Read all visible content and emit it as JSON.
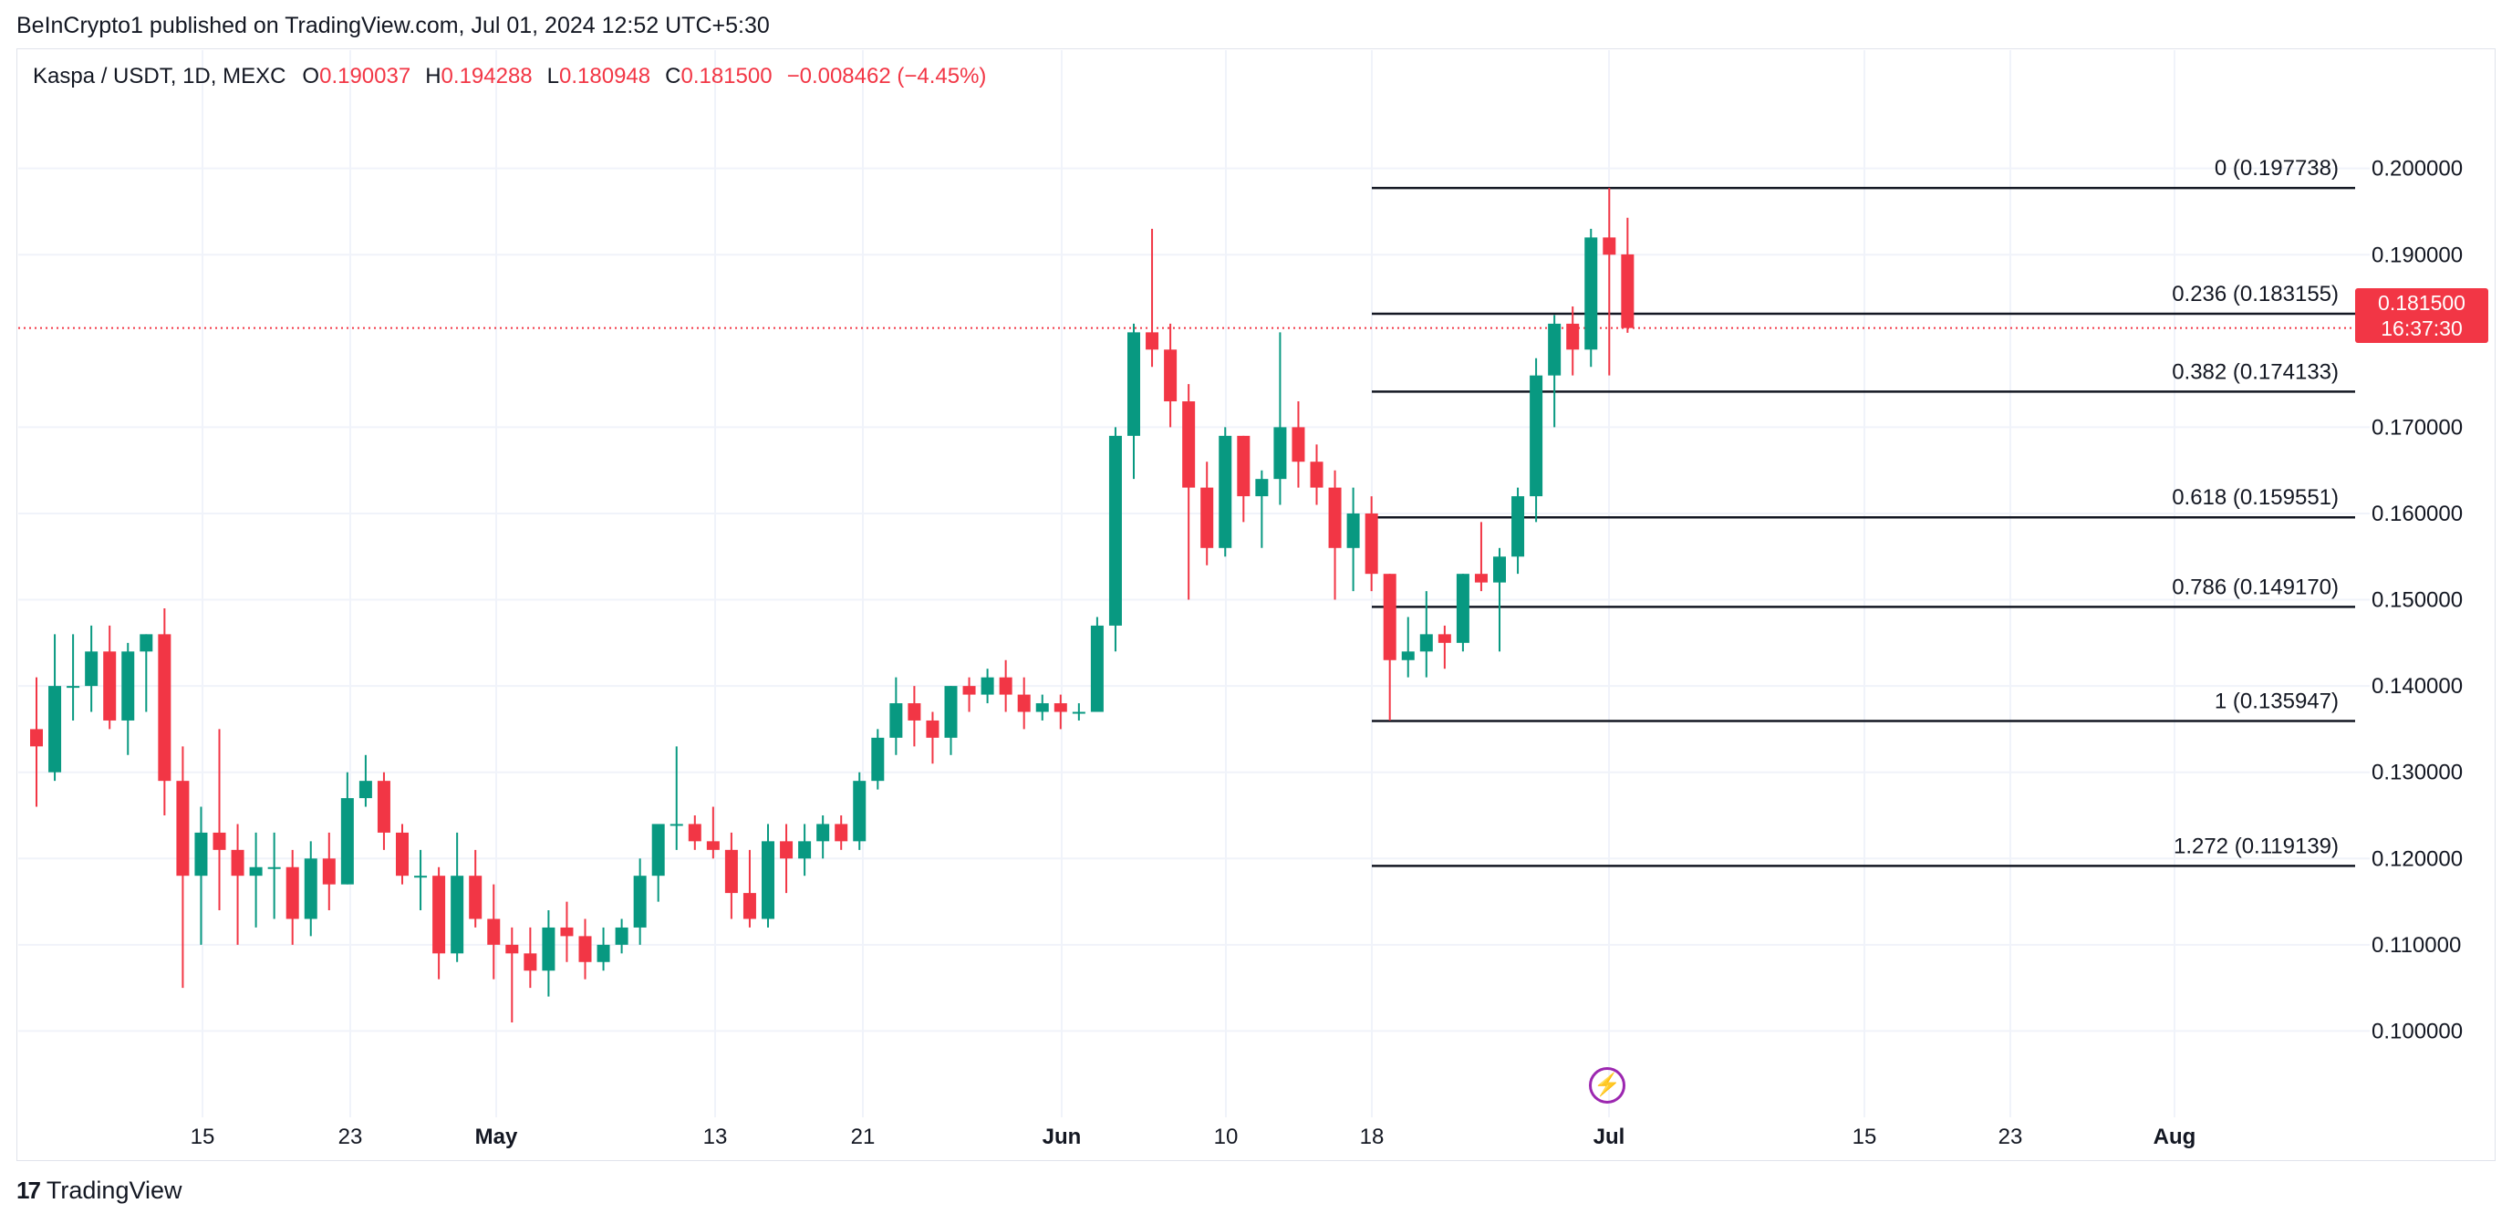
{
  "header": {
    "published": "BeInCrypto1 published on TradingView.com, Jul 01, 2024 12:52 UTC+5:30"
  },
  "legend": {
    "symbol": "Kaspa / USDT, 1D, MEXC",
    "o_label": "O",
    "o_value": "0.190037",
    "h_label": "H",
    "h_value": "0.194288",
    "l_label": "L",
    "l_value": "0.180948",
    "c_label": "C",
    "c_value": "0.181500",
    "change": "−0.008462 (−4.45%)"
  },
  "price_tag": {
    "price": "0.181500",
    "countdown": "16:37:30"
  },
  "footer": {
    "brand": "TradingView",
    "logo_mark": "17"
  },
  "icons": {
    "event": "lightning-icon"
  },
  "colors": {
    "up": "#089981",
    "down": "#f23645",
    "grid": "#f0f3fa",
    "fib_line": "#131722",
    "event": "#9c27b0"
  },
  "chart_data": {
    "type": "candlestick",
    "title": "Kaspa / USDT, 1D, MEXC",
    "ylim": [
      0.09,
      0.2098
    ],
    "y_ticks": [
      "0.200000",
      "0.190000",
      "0.170000",
      "0.160000",
      "0.150000",
      "0.140000",
      "0.130000",
      "0.120000",
      "0.110000",
      "0.100000"
    ],
    "x_ticks": [
      "15",
      "23",
      "May",
      "13",
      "21",
      "Jun",
      "10",
      "18",
      "Jul",
      "15",
      "23",
      "Aug"
    ],
    "x_tick_bold": [
      "May",
      "Jun",
      "Jul",
      "Aug"
    ],
    "last_price": 0.1815,
    "fibonacci": {
      "start": "Jun 18",
      "levels": [
        {
          "label": "0 (0.197738)",
          "value": 0.197738
        },
        {
          "label": "0.236 (0.183155)",
          "value": 0.183155
        },
        {
          "label": "0.382 (0.174133)",
          "value": 0.174133
        },
        {
          "label": "0.618 (0.159551)",
          "value": 0.159551
        },
        {
          "label": "0.786 (0.149170)",
          "value": 0.14917
        },
        {
          "label": "1 (0.135947)",
          "value": 0.135947
        },
        {
          "label": "1.272 (0.119139)",
          "value": 0.119139
        }
      ]
    },
    "candles": [
      [
        0.135,
        0.141,
        0.126,
        0.133
      ],
      [
        0.13,
        0.146,
        0.129,
        0.14
      ],
      [
        0.14,
        0.146,
        0.136,
        0.14
      ],
      [
        0.14,
        0.147,
        0.137,
        0.144
      ],
      [
        0.144,
        0.147,
        0.135,
        0.136
      ],
      [
        0.136,
        0.145,
        0.132,
        0.144
      ],
      [
        0.144,
        0.146,
        0.137,
        0.146
      ],
      [
        0.146,
        0.149,
        0.125,
        0.129
      ],
      [
        0.129,
        0.133,
        0.105,
        0.118
      ],
      [
        0.118,
        0.126,
        0.11,
        0.123
      ],
      [
        0.123,
        0.135,
        0.114,
        0.121
      ],
      [
        0.121,
        0.124,
        0.11,
        0.118
      ],
      [
        0.118,
        0.123,
        0.112,
        0.119
      ],
      [
        0.119,
        0.123,
        0.113,
        0.119
      ],
      [
        0.119,
        0.121,
        0.11,
        0.113
      ],
      [
        0.113,
        0.122,
        0.111,
        0.12
      ],
      [
        0.12,
        0.123,
        0.114,
        0.117
      ],
      [
        0.117,
        0.13,
        0.117,
        0.127
      ],
      [
        0.127,
        0.132,
        0.126,
        0.129
      ],
      [
        0.129,
        0.13,
        0.121,
        0.123
      ],
      [
        0.123,
        0.124,
        0.117,
        0.118
      ],
      [
        0.118,
        0.121,
        0.114,
        0.118
      ],
      [
        0.118,
        0.119,
        0.106,
        0.109
      ],
      [
        0.109,
        0.123,
        0.108,
        0.118
      ],
      [
        0.118,
        0.121,
        0.112,
        0.113
      ],
      [
        0.113,
        0.117,
        0.106,
        0.11
      ],
      [
        0.11,
        0.112,
        0.101,
        0.109
      ],
      [
        0.109,
        0.112,
        0.105,
        0.107
      ],
      [
        0.107,
        0.114,
        0.104,
        0.112
      ],
      [
        0.112,
        0.115,
        0.108,
        0.111
      ],
      [
        0.111,
        0.113,
        0.106,
        0.108
      ],
      [
        0.108,
        0.112,
        0.107,
        0.11
      ],
      [
        0.11,
        0.113,
        0.109,
        0.112
      ],
      [
        0.112,
        0.12,
        0.11,
        0.118
      ],
      [
        0.118,
        0.124,
        0.115,
        0.124
      ],
      [
        0.124,
        0.133,
        0.121,
        0.124
      ],
      [
        0.124,
        0.125,
        0.121,
        0.122
      ],
      [
        0.122,
        0.126,
        0.12,
        0.121
      ],
      [
        0.121,
        0.123,
        0.113,
        0.116
      ],
      [
        0.116,
        0.121,
        0.112,
        0.113
      ],
      [
        0.113,
        0.124,
        0.112,
        0.122
      ],
      [
        0.122,
        0.124,
        0.116,
        0.12
      ],
      [
        0.12,
        0.124,
        0.118,
        0.122
      ],
      [
        0.122,
        0.125,
        0.12,
        0.124
      ],
      [
        0.124,
        0.125,
        0.121,
        0.122
      ],
      [
        0.122,
        0.13,
        0.121,
        0.129
      ],
      [
        0.129,
        0.135,
        0.128,
        0.134
      ],
      [
        0.134,
        0.141,
        0.132,
        0.138
      ],
      [
        0.138,
        0.14,
        0.133,
        0.136
      ],
      [
        0.136,
        0.137,
        0.131,
        0.134
      ],
      [
        0.134,
        0.14,
        0.132,
        0.14
      ],
      [
        0.14,
        0.141,
        0.137,
        0.139
      ],
      [
        0.139,
        0.142,
        0.138,
        0.141
      ],
      [
        0.141,
        0.143,
        0.137,
        0.139
      ],
      [
        0.139,
        0.141,
        0.135,
        0.137
      ],
      [
        0.137,
        0.139,
        0.136,
        0.138
      ],
      [
        0.138,
        0.139,
        0.135,
        0.137
      ],
      [
        0.137,
        0.138,
        0.136,
        0.137
      ],
      [
        0.137,
        0.148,
        0.137,
        0.147
      ],
      [
        0.147,
        0.17,
        0.144,
        0.169
      ],
      [
        0.169,
        0.182,
        0.164,
        0.181
      ],
      [
        0.181,
        0.193,
        0.177,
        0.179
      ],
      [
        0.179,
        0.182,
        0.17,
        0.173
      ],
      [
        0.173,
        0.175,
        0.15,
        0.163
      ],
      [
        0.163,
        0.166,
        0.154,
        0.156
      ],
      [
        0.156,
        0.17,
        0.155,
        0.169
      ],
      [
        0.169,
        0.169,
        0.159,
        0.162
      ],
      [
        0.162,
        0.165,
        0.156,
        0.164
      ],
      [
        0.164,
        0.181,
        0.161,
        0.17
      ],
      [
        0.17,
        0.173,
        0.163,
        0.166
      ],
      [
        0.166,
        0.168,
        0.161,
        0.163
      ],
      [
        0.163,
        0.165,
        0.15,
        0.156
      ],
      [
        0.156,
        0.163,
        0.151,
        0.16
      ],
      [
        0.16,
        0.162,
        0.151,
        0.153
      ],
      [
        0.153,
        0.153,
        0.136,
        0.143
      ],
      [
        0.143,
        0.148,
        0.141,
        0.144
      ],
      [
        0.144,
        0.151,
        0.141,
        0.146
      ],
      [
        0.146,
        0.147,
        0.142,
        0.145
      ],
      [
        0.145,
        0.153,
        0.144,
        0.153
      ],
      [
        0.153,
        0.159,
        0.151,
        0.152
      ],
      [
        0.152,
        0.156,
        0.144,
        0.155
      ],
      [
        0.155,
        0.163,
        0.153,
        0.162
      ],
      [
        0.162,
        0.178,
        0.159,
        0.176
      ],
      [
        0.176,
        0.183,
        0.17,
        0.182
      ],
      [
        0.182,
        0.184,
        0.176,
        0.179
      ],
      [
        0.179,
        0.193,
        0.177,
        0.192
      ],
      [
        0.192,
        0.197738,
        0.176,
        0.19
      ],
      [
        0.190037,
        0.194288,
        0.180948,
        0.1815
      ]
    ]
  }
}
